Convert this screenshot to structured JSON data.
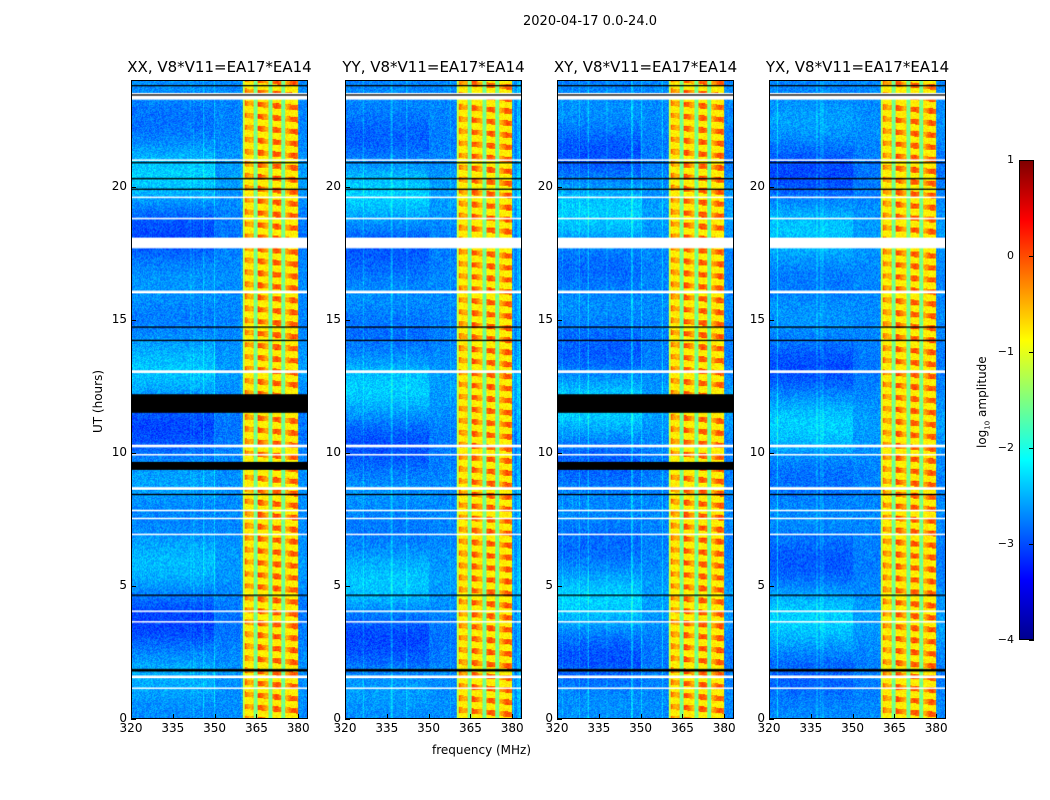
{
  "suptitle": "2020-04-17 0.0-24.0",
  "chart_data": [
    {
      "type": "heatmap",
      "title": "XX, V8*V11=EA17*EA14",
      "black_bands": [
        [
          11.5,
          12.2
        ],
        [
          9.35,
          9.65
        ]
      ]
    },
    {
      "type": "heatmap",
      "title": "YY, V8*V11=EA17*EA14",
      "black_bands": []
    },
    {
      "type": "heatmap",
      "title": "XY, V8*V11=EA17*EA14",
      "black_bands": [
        [
          11.5,
          12.2
        ],
        [
          9.35,
          9.65
        ]
      ]
    },
    {
      "type": "heatmap",
      "title": "YX, V8*V11=EA17*EA14",
      "black_bands": []
    }
  ],
  "axes": {
    "xlabel": "frequency (MHz)",
    "ylabel": "UT (hours)",
    "xlim": [
      320,
      383.5
    ],
    "ylim": [
      0,
      24
    ],
    "xticks": [
      "320",
      "335",
      "350",
      "365",
      "380"
    ],
    "xtick_values": [
      320,
      335,
      350,
      365,
      380
    ],
    "yticks": [
      "0",
      "5",
      "10",
      "15",
      "20"
    ],
    "ytick_values": [
      0,
      5,
      10,
      15,
      20
    ],
    "rfi_band_mhz": [
      360,
      380
    ],
    "band_gaps_mhz": [
      364.6,
      370,
      374.6
    ],
    "flagged_white_hours": [
      [
        23.3,
        23.55
      ],
      [
        17.7,
        18.1
      ],
      [
        16.0,
        16.1
      ],
      [
        13.0,
        13.1
      ],
      [
        10.2,
        10.3
      ],
      [
        9.9,
        9.95
      ],
      [
        8.6,
        8.7
      ],
      [
        7.8,
        7.85
      ],
      [
        7.5,
        7.55
      ],
      [
        6.9,
        6.95
      ],
      [
        1.5,
        1.6
      ],
      [
        1.1,
        1.15
      ],
      [
        4.0,
        4.05
      ],
      [
        3.6,
        3.65
      ],
      [
        21.0,
        21.05
      ],
      [
        19.6,
        19.65
      ],
      [
        18.8,
        18.85
      ]
    ],
    "flagged_black_hours": [
      [
        23.8,
        23.85
      ],
      [
        23.45,
        23.5
      ],
      [
        20.9,
        20.95
      ],
      [
        20.3,
        20.35
      ],
      [
        19.9,
        19.95
      ],
      [
        14.7,
        14.75
      ],
      [
        14.2,
        14.25
      ],
      [
        8.4,
        8.45
      ],
      [
        4.6,
        4.65
      ],
      [
        1.75,
        1.85
      ]
    ]
  },
  "colorbar": {
    "label_main": "log",
    "label_sub": "10",
    "label_tail": " amplitude",
    "range": [
      -4,
      1
    ],
    "ticks": [
      "1",
      "0",
      "−1",
      "−2",
      "−3",
      "−4"
    ],
    "tick_values": [
      1,
      0,
      -1,
      -2,
      -3,
      -4
    ],
    "colormap": "jet"
  }
}
